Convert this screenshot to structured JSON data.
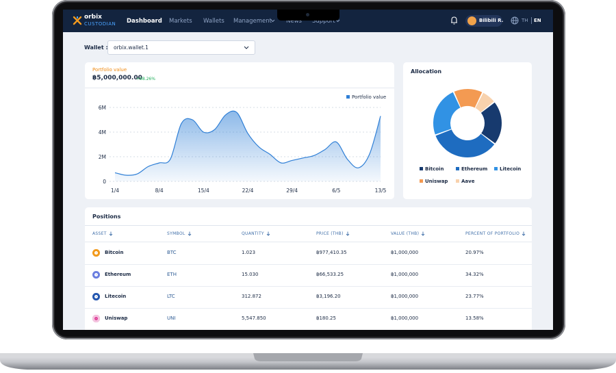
{
  "nav": {
    "brand": "orbix",
    "brand_sub": "CUSTODIAN",
    "items": [
      "Dashboard",
      "Markets",
      "Wallets",
      "Management",
      "News",
      "Support"
    ],
    "user": "Bilibili R.",
    "languages": [
      "TH",
      "EN"
    ]
  },
  "wallet": {
    "label": "Wallet :",
    "value": "orbix.wallet.1"
  },
  "portfolio": {
    "label": "Portfolio value",
    "value": "฿5,000,000.00",
    "change": "+98.26%",
    "chart_data": {
      "type": "area",
      "categories": [
        "1/4",
        null,
        null,
        null,
        "8/4",
        null,
        null,
        null,
        "15/4",
        null,
        null,
        null,
        "22/4",
        null,
        null,
        null,
        "29/4",
        null,
        null,
        null,
        "6/5",
        null,
        null,
        null,
        "13/5"
      ],
      "series": [
        {
          "name": "Portfolio value",
          "color": "#2f7fd6",
          "values": [
            0.7,
            0.5,
            0.6,
            1.2,
            1.5,
            1.8,
            4.7,
            5.0,
            4.0,
            4.2,
            5.4,
            5.6,
            3.9,
            2.8,
            2.2,
            1.5,
            1.7,
            1.9,
            2.1,
            2.6,
            3.2,
            1.8,
            1.1,
            2.2,
            5.3
          ]
        }
      ],
      "ylim": [
        0,
        6
      ],
      "yticks": [
        0,
        {
          "value": 2,
          "label": "2M"
        },
        {
          "value": 4,
          "label": "4M"
        },
        {
          "value": 6,
          "label": "6M"
        }
      ],
      "grid": true,
      "legend": "top-right"
    }
  },
  "allocation": {
    "title": "Allocation",
    "chart_data": {
      "type": "donut",
      "categories": [
        "Bitcoin",
        "Ethereum",
        "Litecoin",
        "Uniswap",
        "Aave"
      ],
      "values": [
        21,
        34,
        24,
        14,
        7
      ],
      "colors": [
        "#173a6e",
        "#1e6cc0",
        "#3192e4",
        "#f39a52",
        "#f8d2ad"
      ],
      "legend": "bottom"
    }
  },
  "positions": {
    "title": "Positions",
    "columns": [
      "ASSET",
      "SYMBOL",
      "QUANTITY",
      "PRICE (THB)",
      "VALUE (THB)",
      "PERCENT OF PORTFOLIO"
    ],
    "rows": [
      [
        "Bitcoin",
        "BTC",
        "1.023",
        "฿977,410.35",
        "฿1,000,000",
        "20.97%"
      ],
      [
        "Ethereum",
        "ETH",
        "15.030",
        "฿66,533.25",
        "฿1,000,000",
        "34.32%"
      ],
      [
        "Litecoin",
        "LTC",
        "312.872",
        "฿3,196.20",
        "฿1,000,000",
        "23.77%"
      ],
      [
        "Uniswap",
        "UNI",
        "5,547.850",
        "฿180.25",
        "฿1,000,000",
        "13.58%"
      ]
    ]
  }
}
